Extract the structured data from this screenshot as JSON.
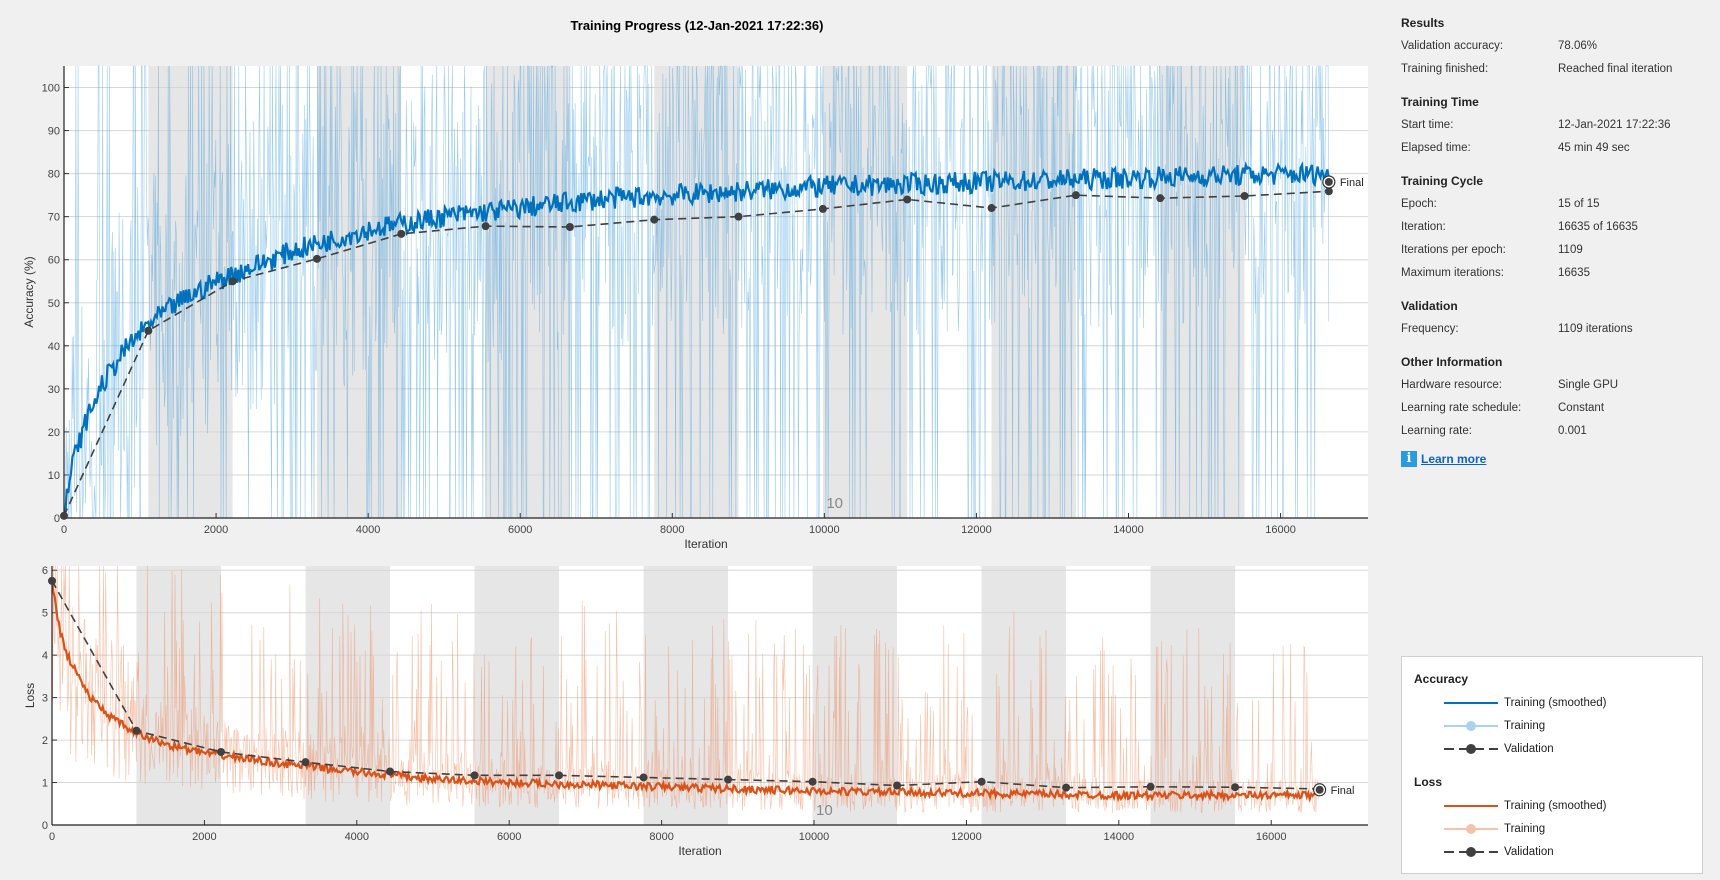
{
  "title": "Training Progress (12-Jan-2021 17:22:36)",
  "panel": {
    "sections": [
      {
        "header": "Results",
        "rows": [
          {
            "label": "Validation accuracy:",
            "value": "78.06%"
          },
          {
            "label": "Training finished:",
            "value": "Reached final iteration"
          }
        ]
      },
      {
        "header": "Training Time",
        "rows": [
          {
            "label": "Start time:",
            "value": "12-Jan-2021 17:22:36"
          },
          {
            "label": "Elapsed time:",
            "value": "45 min 49 sec"
          }
        ]
      },
      {
        "header": "Training Cycle",
        "rows": [
          {
            "label": "Epoch:",
            "value": "15 of 15"
          },
          {
            "label": "Iteration:",
            "value": "16635 of 16635"
          },
          {
            "label": "Iterations per epoch:",
            "value": "1109"
          },
          {
            "label": "Maximum iterations:",
            "value": "16635"
          }
        ]
      },
      {
        "header": "Validation",
        "rows": [
          {
            "label": "Frequency:",
            "value": "1109 iterations"
          }
        ]
      },
      {
        "header": "Other Information",
        "rows": [
          {
            "label": "Hardware resource:",
            "value": "Single GPU"
          },
          {
            "label": "Learning rate schedule:",
            "value": "Constant"
          },
          {
            "label": "Learning rate:",
            "value": "0.001"
          }
        ]
      }
    ],
    "learn_more": "Learn more",
    "info_icon": "i"
  },
  "legend": {
    "accuracy_header": "Accuracy",
    "loss_header": "Loss",
    "smoothed": "Training (smoothed)",
    "training": "Training",
    "validation": "Validation"
  },
  "chart_data": [
    {
      "type": "line",
      "name": "accuracy",
      "ylabel": "Accuracy (%)",
      "xlabel": "Iteration",
      "xlim": [
        0,
        17150
      ],
      "ylim": [
        0,
        105
      ],
      "xticks": [
        0,
        2000,
        4000,
        6000,
        8000,
        10000,
        12000,
        14000,
        16000
      ],
      "yticks": [
        0,
        10,
        20,
        30,
        40,
        50,
        60,
        70,
        80,
        90,
        100
      ],
      "grid": true,
      "epoch_length": 1109,
      "epoch_label": {
        "text": "10",
        "iteration": 10000
      },
      "colors": {
        "smoothed": "#0072bd",
        "raw": "#4aa3df",
        "validation": "#404040"
      },
      "smoothed": {
        "x": [
          0,
          100,
          300,
          500,
          800,
          1109,
          1500,
          2000,
          3000,
          4000,
          5000,
          6000,
          7000,
          8000,
          9000,
          10000,
          11000,
          12000,
          13000,
          14000,
          15000,
          16635
        ],
        "y": [
          0,
          12,
          23,
          31,
          39,
          45,
          50,
          55,
          62,
          67,
          70,
          72,
          74,
          75,
          76,
          77,
          77.5,
          78,
          78.5,
          79,
          79.5,
          80
        ]
      },
      "validation": {
        "x": [
          0,
          1109,
          2218,
          3327,
          4436,
          5545,
          6654,
          7763,
          8872,
          9981,
          11090,
          12199,
          13308,
          14417,
          15526,
          16635
        ],
        "y": [
          0.5,
          43.5,
          55,
          60.2,
          66,
          67.8,
          67.6,
          69.3,
          70,
          71.8,
          74,
          72,
          75,
          74.3,
          74.8,
          75.9
        ]
      },
      "final": {
        "label": "Final",
        "iteration": 16635,
        "value": 78.06
      }
    },
    {
      "type": "line",
      "name": "loss",
      "ylabel": "Loss",
      "xlabel": "Iteration",
      "xlim": [
        0,
        17270
      ],
      "ylim": [
        0,
        6.1
      ],
      "xticks": [
        0,
        2000,
        4000,
        6000,
        8000,
        10000,
        12000,
        14000,
        16000
      ],
      "yticks": [
        0,
        1,
        2,
        3,
        4,
        5,
        6
      ],
      "grid": true,
      "epoch_length": 1109,
      "epoch_label": {
        "text": "10",
        "iteration": 10000
      },
      "colors": {
        "smoothed": "#d95319",
        "raw": "#f08a5d",
        "validation": "#404040"
      },
      "smoothed": {
        "x": [
          0,
          100,
          200,
          500,
          800,
          1109,
          1500,
          2000,
          3000,
          4000,
          5000,
          6000,
          7000,
          8000,
          9000,
          10000,
          12000,
          14000,
          16635
        ],
        "y": [
          5.8,
          4.6,
          4.0,
          3.0,
          2.5,
          2.15,
          1.9,
          1.7,
          1.45,
          1.25,
          1.08,
          1.0,
          0.95,
          0.9,
          0.85,
          0.8,
          0.75,
          0.7,
          0.7
        ]
      },
      "validation": {
        "x": [
          0,
          1109,
          2218,
          3327,
          4436,
          5545,
          6654,
          7763,
          8872,
          9981,
          11090,
          12199,
          13308,
          14417,
          15526,
          16635
        ],
        "y": [
          5.75,
          2.22,
          1.72,
          1.48,
          1.26,
          1.17,
          1.17,
          1.12,
          1.07,
          1.02,
          0.93,
          1.02,
          0.88,
          0.9,
          0.89,
          0.85
        ]
      },
      "final": {
        "label": "Final",
        "iteration": 16635,
        "value": 0.83
      }
    }
  ]
}
